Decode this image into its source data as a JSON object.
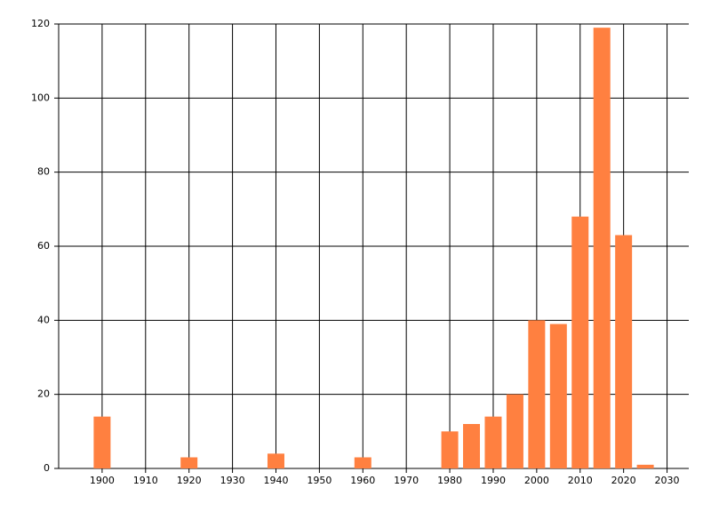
{
  "chart_data": {
    "type": "bar",
    "x": [
      1900,
      1920,
      1940,
      1960,
      1980,
      1985,
      1990,
      1995,
      2000,
      2005,
      2010,
      2015,
      2020,
      2025
    ],
    "values": [
      14,
      3,
      4,
      3,
      10,
      12,
      14,
      20,
      40,
      39,
      68,
      119,
      63,
      1
    ],
    "color": "#ff8040",
    "xlim": [
      1890,
      2035
    ],
    "xticks": [
      1900,
      1910,
      1920,
      1930,
      1940,
      1950,
      1960,
      1970,
      1980,
      1990,
      2000,
      2010,
      2020,
      2030
    ],
    "ylim": [
      0,
      120
    ],
    "yticks": [
      0,
      20,
      40,
      60,
      80,
      100,
      120
    ],
    "grid": true
  }
}
